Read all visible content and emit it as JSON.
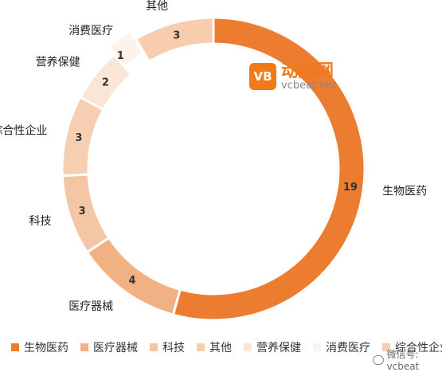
{
  "chart_data": {
    "type": "pie",
    "variant": "donut",
    "categories": [
      "生物医药",
      "医疗器械",
      "科技",
      "综合性企业",
      "营养保健",
      "消费医疗",
      "其他"
    ],
    "values": [
      19,
      4,
      3,
      3,
      2,
      1,
      3
    ],
    "colors": [
      "#ec7c30",
      "#f2b183",
      "#f4c6a5",
      "#f6cfb3",
      "#fbe5d6",
      "#fdf3ec",
      "#f7cdae"
    ],
    "legend_order": [
      "生物医药",
      "医疗器械",
      "科技",
      "其他",
      "营养保健",
      "消费医疗",
      "综合性企业"
    ],
    "legend_position": "bottom"
  },
  "watermark": {
    "logo": "VB",
    "name": "动脉网",
    "url": "vcbeat.net"
  },
  "wechat": {
    "label": "微信号: vcbeat"
  }
}
